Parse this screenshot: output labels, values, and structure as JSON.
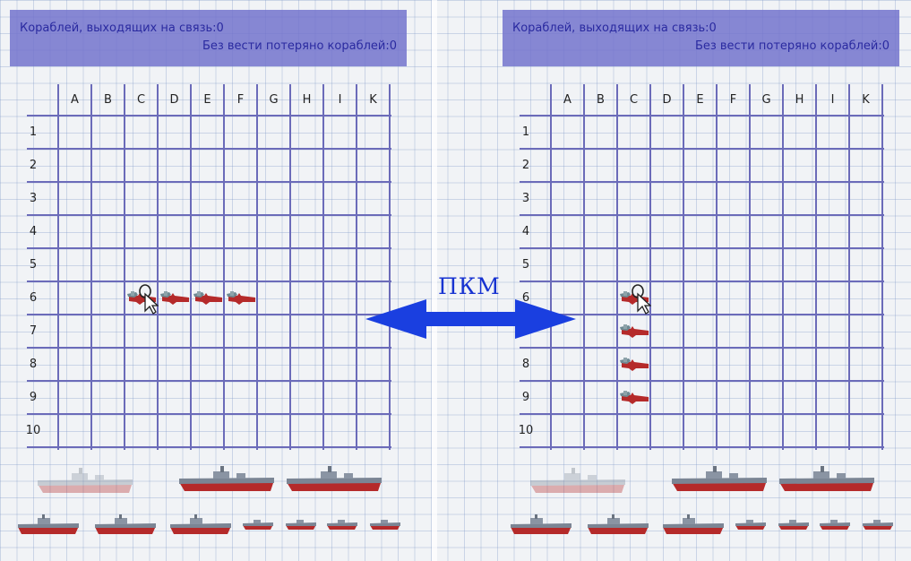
{
  "hud": {
    "ships_online": "Кораблей, выходящих на связь:0",
    "ships_lost": "Без вести потеряно кораблей:0"
  },
  "columns": [
    "A",
    "B",
    "C",
    "D",
    "E",
    "F",
    "G",
    "H",
    "I",
    "K"
  ],
  "rows": [
    "1",
    "2",
    "3",
    "4",
    "5",
    "6",
    "7",
    "8",
    "9",
    "10"
  ],
  "action_label": "ПКМ",
  "colors": {
    "grid": "#6b6bb9",
    "hud_bg": "#7373cd",
    "hud_text": "#2a2aa0",
    "arrow": "#1a3fe0",
    "ship_red": "#b52a2a",
    "ship_grey": "#7b8594"
  },
  "left_board": {
    "placement": "horizontal",
    "placed_cells": [
      "C6",
      "D6",
      "E6",
      "F6"
    ]
  },
  "right_board": {
    "placement": "vertical",
    "placed_cells": [
      "C6",
      "C7",
      "C8",
      "C9"
    ]
  },
  "fleet": {
    "total_ships": 10,
    "placing_ship_index": 0
  }
}
